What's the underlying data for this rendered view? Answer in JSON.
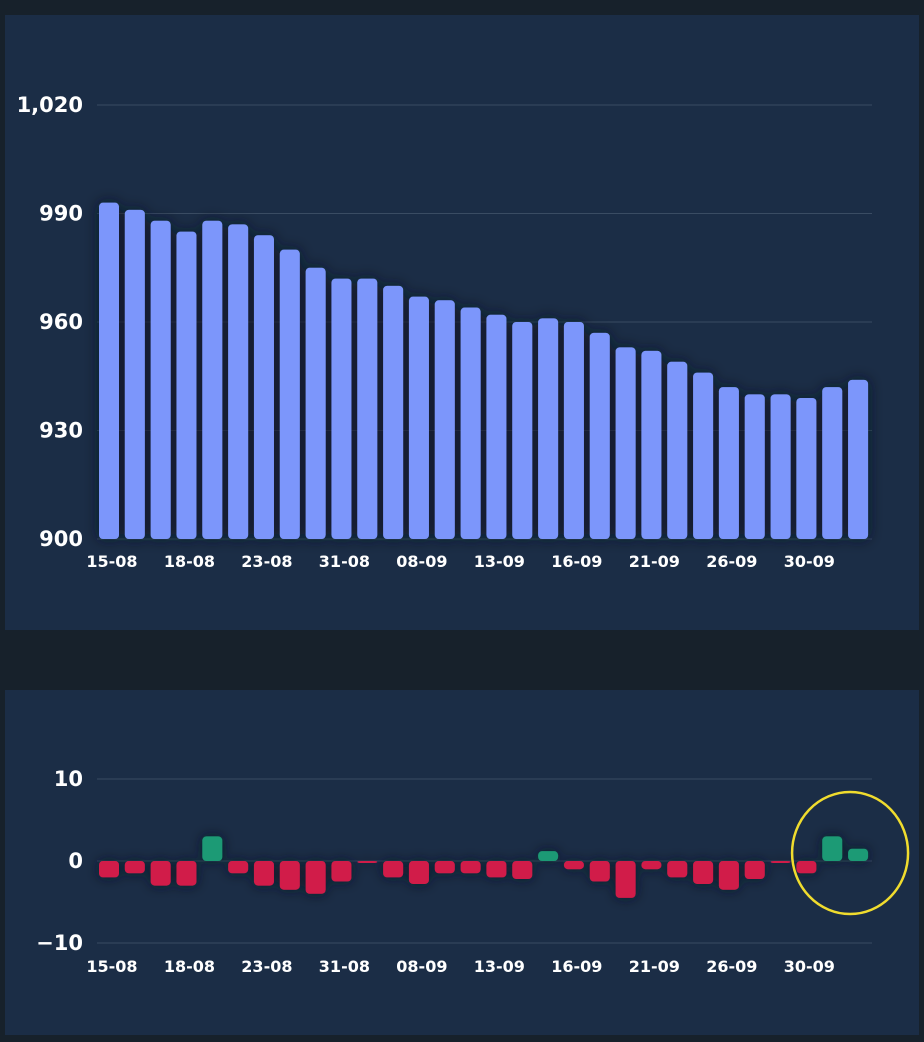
{
  "chart_data": [
    {
      "type": "bar",
      "title": "",
      "xlabel": "",
      "ylabel": "",
      "ylim": [
        900,
        1030
      ],
      "yticks": [
        900,
        930,
        960,
        990,
        1020
      ],
      "ytick_labels": [
        "900",
        "930",
        "960",
        "990",
        "1,020"
      ],
      "xtick_labels": [
        "15-08",
        "18-08",
        "23-08",
        "31-08",
        "08-09",
        "13-09",
        "16-09",
        "21-09",
        "26-09",
        "30-09"
      ],
      "series": [
        {
          "name": "value",
          "color": "#7b96fb",
          "values": [
            993,
            991,
            988,
            985,
            988,
            987,
            984,
            980,
            975,
            972,
            972,
            970,
            967,
            966,
            964,
            962,
            960,
            961,
            960,
            957,
            953,
            952,
            949,
            946,
            942,
            940,
            940,
            939,
            942,
            944
          ]
        }
      ]
    },
    {
      "type": "bar",
      "title": "",
      "xlabel": "",
      "ylabel": "",
      "ylim": [
        -10,
        10
      ],
      "yticks": [
        -10,
        0,
        10
      ],
      "ytick_labels": [
        "−10",
        "0",
        "10"
      ],
      "xtick_labels": [
        "15-08",
        "18-08",
        "23-08",
        "31-08",
        "08-09",
        "13-09",
        "16-09",
        "21-09",
        "26-09",
        "30-09"
      ],
      "positive_color": "#1a9a74",
      "negative_color": "#d11a4a",
      "highlight_color": "#f0dc2e",
      "highlight_last_n": 2,
      "series": [
        {
          "name": "change",
          "values": [
            -2,
            -1.5,
            -3,
            -3,
            3,
            -1.5,
            -3,
            -3.5,
            -4,
            -2.5,
            -0.2,
            -2,
            -2.8,
            -1.5,
            -1.5,
            -2,
            -2.2,
            1.2,
            -1,
            -2.5,
            -4.5,
            -1,
            -2,
            -2.8,
            -3.5,
            -2.2,
            -0.2,
            -1.5,
            3,
            1.5
          ]
        }
      ]
    }
  ]
}
